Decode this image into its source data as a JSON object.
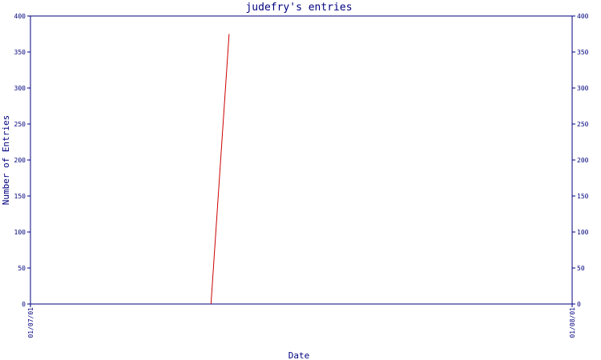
{
  "chart_data": {
    "type": "line",
    "title": "judefry's entries",
    "xlabel": "Date",
    "ylabel": "Number of Entries",
    "ylim": [
      0,
      400
    ],
    "yticks": [
      0,
      50,
      100,
      150,
      200,
      250,
      300,
      350,
      400
    ],
    "xlim": [
      "01/07/01",
      "01/08/01"
    ],
    "xtick_labels": [
      "01/07/01",
      "01/08/01"
    ],
    "grid": false,
    "series": [
      {
        "x": [
          "01/07/01 08:00",
          "01/07/01 08:48"
        ],
        "values": [
          0,
          375
        ],
        "color": "#cc0000"
      }
    ],
    "axis_color": "#000080"
  }
}
